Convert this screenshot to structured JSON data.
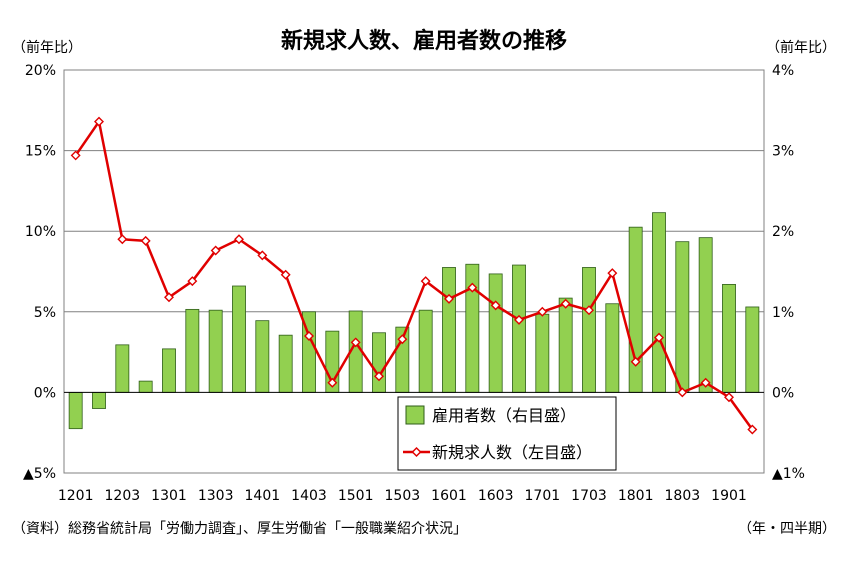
{
  "chart_data": {
    "type": "bar",
    "title": "新規求人数、雇用者数の推移",
    "left_axis": {
      "unit_label": "（前年比）",
      "ylim": [
        -5,
        20
      ],
      "ticks": [
        20,
        15,
        10,
        5,
        0,
        -5
      ],
      "tick_labels": [
        "20%",
        "15%",
        "10%",
        "5%",
        "0%",
        "▲5%"
      ]
    },
    "right_axis": {
      "unit_label": "（前年比）",
      "ylim": [
        -1,
        4
      ],
      "ticks": [
        4,
        3,
        2,
        1,
        0,
        -1
      ],
      "tick_labels": [
        "4%",
        "3%",
        "2%",
        "1%",
        "0%",
        "▲1%"
      ]
    },
    "x_tick_labels": [
      "1201",
      "1203",
      "1301",
      "1303",
      "1401",
      "1403",
      "1501",
      "1503",
      "1601",
      "1603",
      "1701",
      "1703",
      "1801",
      "1803",
      "1901"
    ],
    "x_count": 30,
    "series": [
      {
        "name": "雇用者数（右目盛）",
        "type": "bar",
        "axis": "right",
        "color": "#92D050",
        "values": [
          -0.45,
          -0.2,
          0.59,
          0.14,
          0.54,
          1.03,
          1.02,
          1.32,
          0.89,
          0.71,
          1.0,
          0.76,
          1.01,
          0.74,
          0.81,
          1.02,
          1.55,
          1.59,
          1.47,
          1.58,
          0.97,
          1.17,
          1.55,
          1.1,
          2.05,
          2.23,
          1.87,
          1.92,
          1.34,
          1.06
        ]
      },
      {
        "name": "新規求人数（左目盛）",
        "type": "line",
        "axis": "left",
        "color": "#E00000",
        "values": [
          14.7,
          16.8,
          9.5,
          9.4,
          5.9,
          6.9,
          8.8,
          9.5,
          8.5,
          7.3,
          3.5,
          0.6,
          3.1,
          1.0,
          3.3,
          6.9,
          5.8,
          6.5,
          5.4,
          4.5,
          5.0,
          5.5,
          5.1,
          7.4,
          1.9,
          3.4,
          0.0,
          0.6,
          -0.3,
          -2.3
        ]
      }
    ],
    "grid": true
  },
  "footer": {
    "source": "（資料）総務省統計局「労働力調査」、厚生労働省「一般職業紹介状況」",
    "period_note": "（年・四半期）"
  }
}
